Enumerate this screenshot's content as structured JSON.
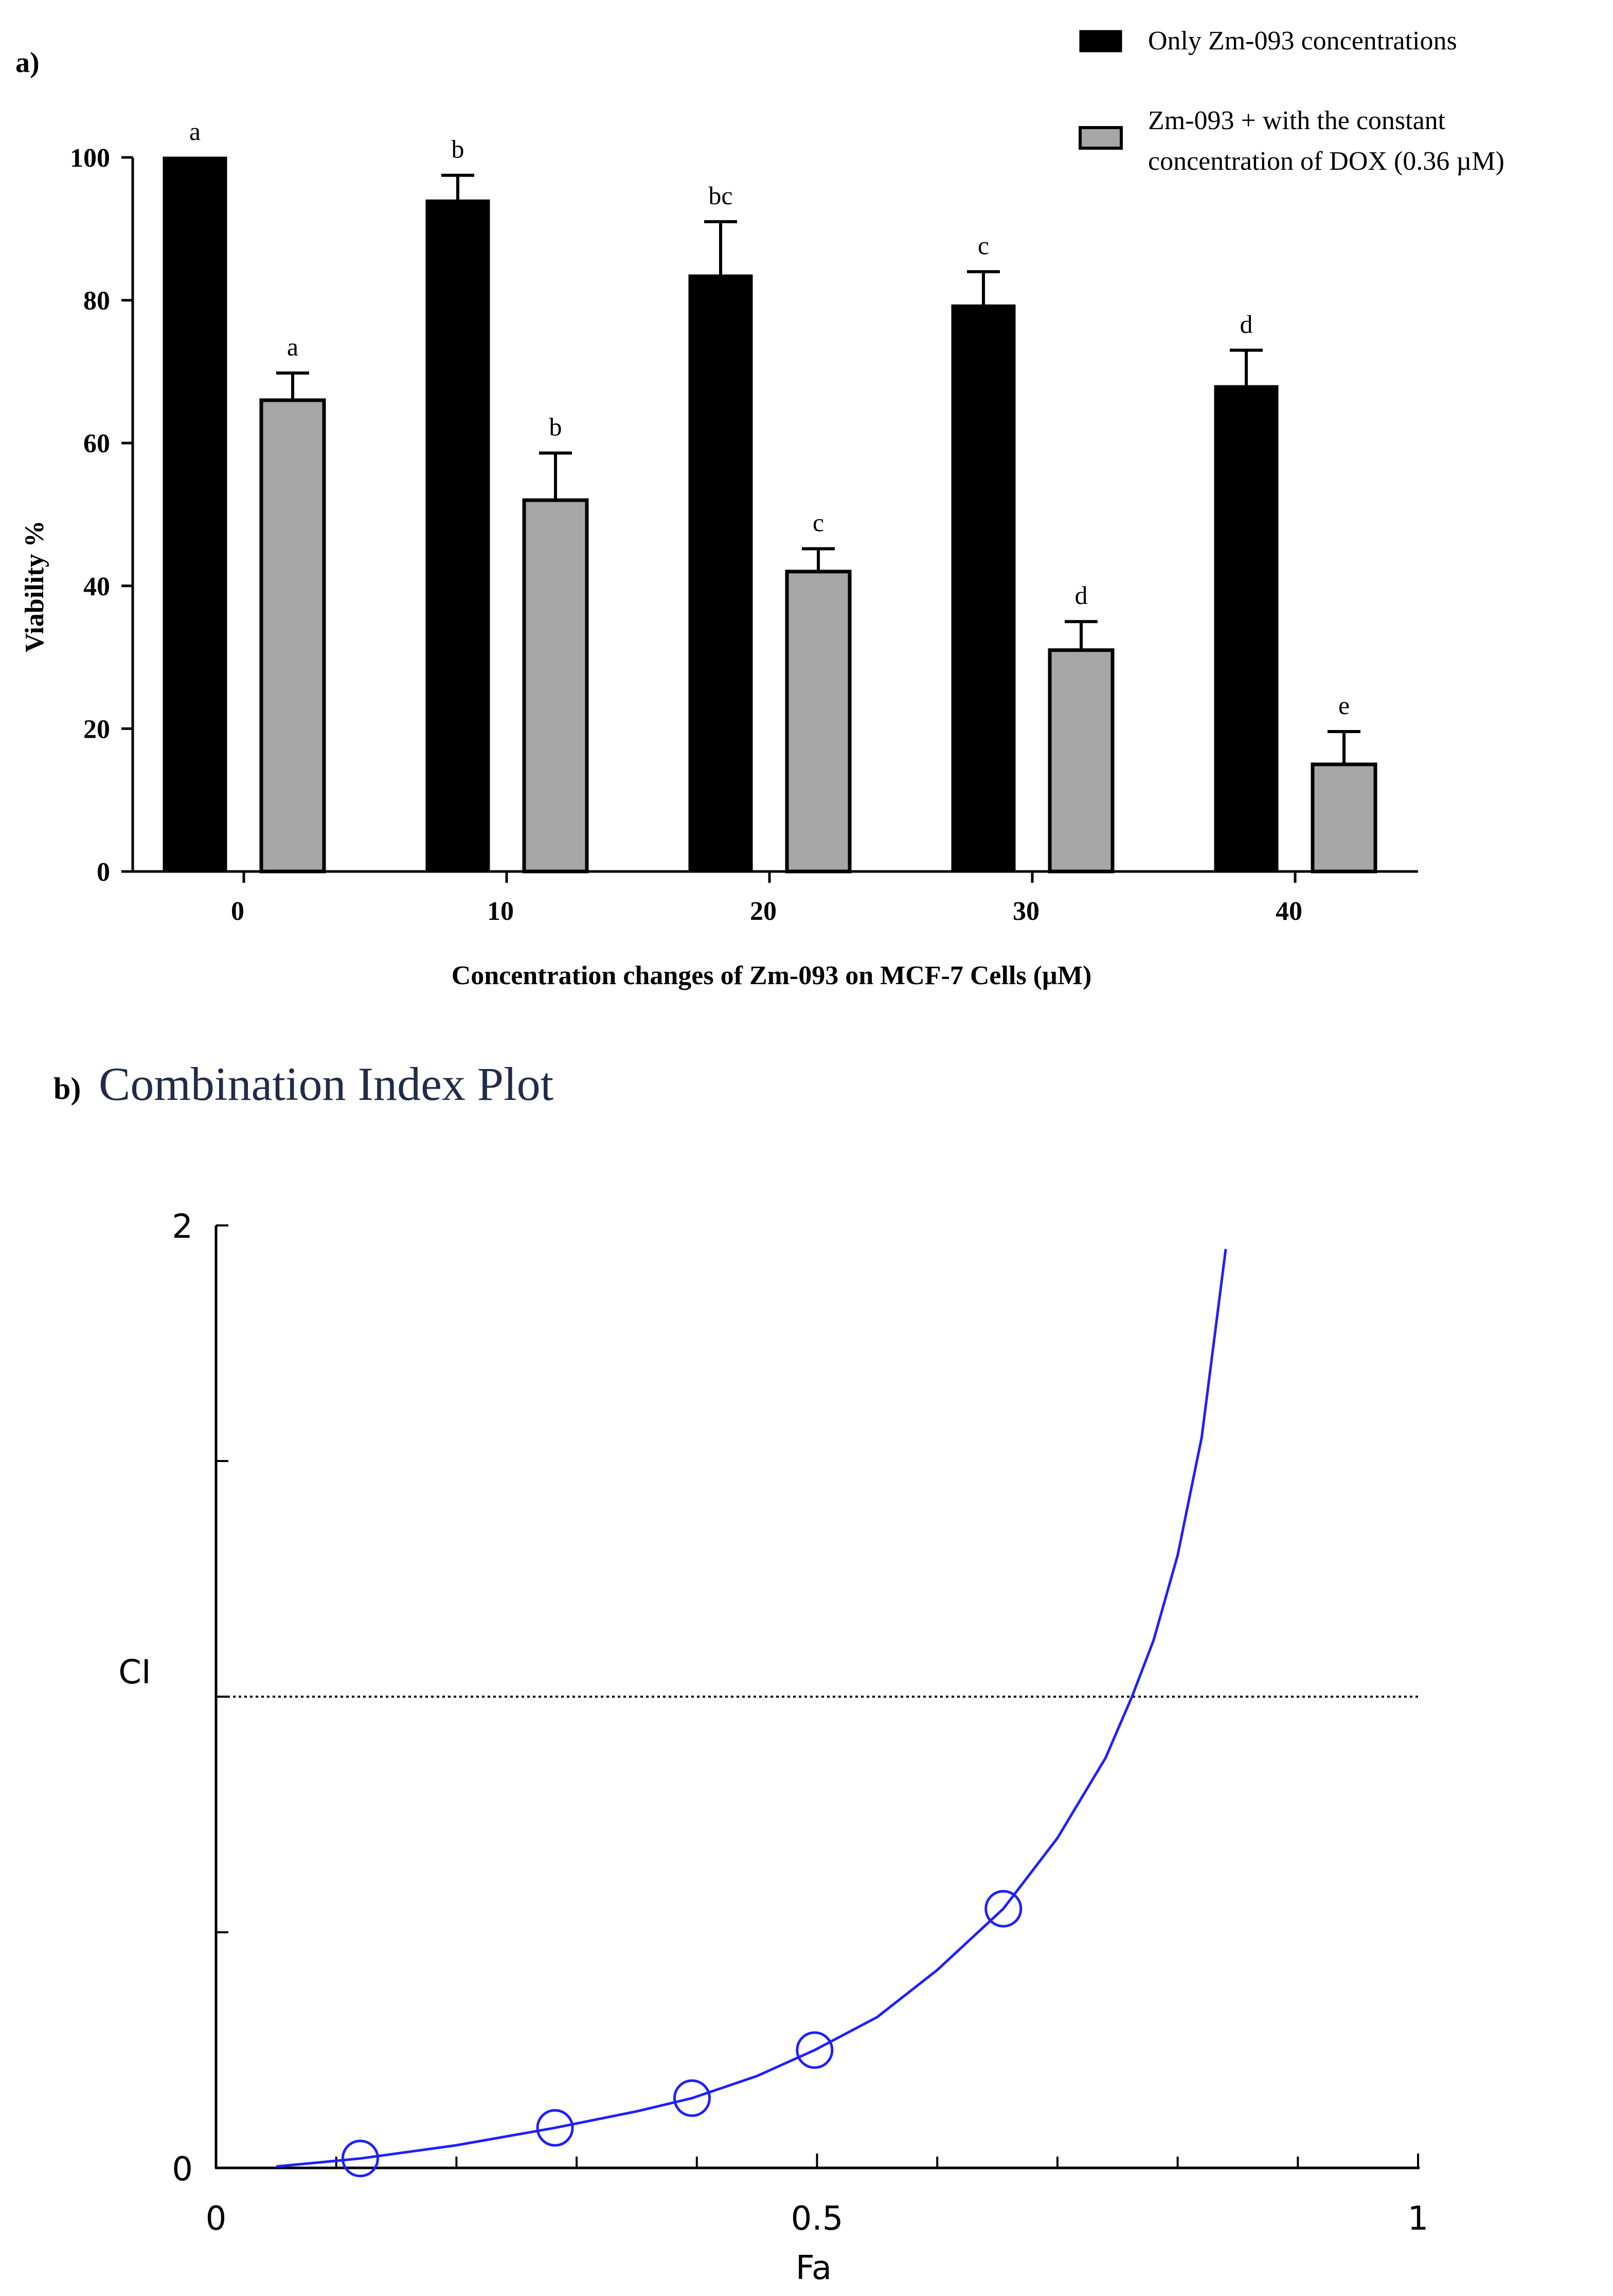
{
  "colors": {
    "series_only": "#000000",
    "series_combo": "#a6a6a6",
    "curve": "#1f1fff",
    "axis": "#000000",
    "title_b": "#1f2d4a"
  },
  "panel_a": {
    "label": "a)",
    "chart_data": {
      "type": "bar",
      "xlabel": "Concentration changes of Zm-093 on MCF-7 Cells (µM)",
      "ylabel": "Viability %",
      "ylim": [
        0,
        100
      ],
      "yticks": [
        "0",
        "20",
        "40",
        "60",
        "80",
        "100"
      ],
      "categories": [
        "0",
        "10",
        "20",
        "30",
        "40"
      ],
      "legend_position": "top-right",
      "series": [
        {
          "name": "Only Zm-093 concentrations",
          "values": [
            100,
            94,
            83.5,
            79.3,
            68
          ],
          "errors": [
            0,
            3.5,
            7.5,
            4.7,
            5
          ],
          "letters": [
            "a",
            "b",
            "bc",
            "c",
            "d"
          ]
        },
        {
          "name_lines": [
            "Zm-093 + with the constant",
            "concentration of DOX (0.36 µM)"
          ],
          "values": [
            66,
            52,
            42,
            31,
            15
          ],
          "errors": [
            3.8,
            6.6,
            3.2,
            4,
            4.6
          ],
          "letters": [
            "a",
            "b",
            "c",
            "d",
            "e"
          ]
        }
      ]
    }
  },
  "panel_b": {
    "label": "b)",
    "title": "Combination Index Plot",
    "chart_data": {
      "type": "scatter",
      "xlabel": "Fa",
      "ylabel": "CI",
      "xlim": [
        0,
        1
      ],
      "ylim": [
        0,
        2
      ],
      "xtick_labels": [
        "0",
        "0.5",
        "1"
      ],
      "ytick_labels": [
        "0",
        "2"
      ],
      "reference_line_y": 1,
      "points": [
        {
          "x": 0.12,
          "y": 0.02
        },
        {
          "x": 0.282,
          "y": 0.085
        },
        {
          "x": 0.396,
          "y": 0.148
        },
        {
          "x": 0.498,
          "y": 0.25
        },
        {
          "x": 0.655,
          "y": 0.55
        }
      ],
      "curve": [
        {
          "x": 0.05,
          "y": 0.003
        },
        {
          "x": 0.12,
          "y": 0.02
        },
        {
          "x": 0.2,
          "y": 0.048
        },
        {
          "x": 0.282,
          "y": 0.085
        },
        {
          "x": 0.35,
          "y": 0.12
        },
        {
          "x": 0.396,
          "y": 0.148
        },
        {
          "x": 0.45,
          "y": 0.195
        },
        {
          "x": 0.498,
          "y": 0.25
        },
        {
          "x": 0.55,
          "y": 0.32
        },
        {
          "x": 0.6,
          "y": 0.42
        },
        {
          "x": 0.655,
          "y": 0.55
        },
        {
          "x": 0.7,
          "y": 0.7
        },
        {
          "x": 0.74,
          "y": 0.87
        },
        {
          "x": 0.762,
          "y": 1.0
        },
        {
          "x": 0.78,
          "y": 1.12
        },
        {
          "x": 0.8,
          "y": 1.3
        },
        {
          "x": 0.82,
          "y": 1.55
        },
        {
          "x": 0.84,
          "y": 1.95
        }
      ]
    }
  }
}
